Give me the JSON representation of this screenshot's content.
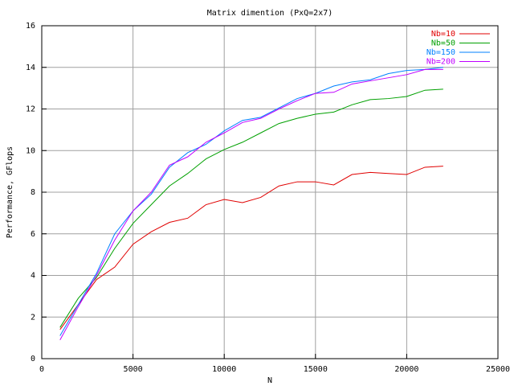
{
  "chart_data": {
    "type": "line",
    "title": "Matrix dimention (PxQ=2x7)",
    "x_label": "N",
    "y_label": "Performance, GFlops",
    "x": [
      1000,
      2000,
      3000,
      4000,
      5000,
      6000,
      7000,
      8000,
      9000,
      10000,
      11000,
      12000,
      13000,
      14000,
      15000,
      16000,
      17000,
      18000,
      19000,
      20000,
      21000,
      22000
    ],
    "series": [
      {
        "name": "Nb=10",
        "color": "#e00000",
        "values": [
          1.4,
          2.6,
          3.8,
          4.4,
          5.5,
          6.1,
          6.55,
          6.75,
          7.4,
          7.65,
          7.5,
          7.75,
          8.3,
          8.5,
          8.5,
          8.35,
          8.85,
          8.95,
          8.9,
          8.85,
          9.2,
          9.25
        ]
      },
      {
        "name": "Nb=50",
        "color": "#00a000",
        "values": [
          1.5,
          2.9,
          3.9,
          5.3,
          6.5,
          7.4,
          8.3,
          8.9,
          9.6,
          10.05,
          10.4,
          10.85,
          11.3,
          11.55,
          11.75,
          11.85,
          12.2,
          12.45,
          12.5,
          12.6,
          12.9,
          12.95
        ]
      },
      {
        "name": "Nb=150",
        "color": "#0080ff",
        "values": [
          1.1,
          2.6,
          4.1,
          6.0,
          7.1,
          7.9,
          9.2,
          9.9,
          10.3,
          10.95,
          11.45,
          11.6,
          12.05,
          12.5,
          12.75,
          13.1,
          13.3,
          13.4,
          13.7,
          13.85,
          13.9,
          14.0
        ]
      },
      {
        "name": "Nb=200",
        "color": "#c000ff",
        "values": [
          0.9,
          2.5,
          4.0,
          5.7,
          7.1,
          8.0,
          9.3,
          9.7,
          10.4,
          10.85,
          11.35,
          11.55,
          12.0,
          12.4,
          12.75,
          12.8,
          13.2,
          13.35,
          13.5,
          13.65,
          13.9,
          13.9
        ]
      }
    ],
    "xlim": [
      0,
      25000
    ],
    "xticks": [
      0,
      5000,
      10000,
      15000,
      20000,
      25000
    ],
    "ylim": [
      0,
      16
    ],
    "yticks": [
      0,
      2,
      4,
      6,
      8,
      10,
      12,
      14,
      16
    ],
    "grid": true,
    "legend": "top-right"
  }
}
